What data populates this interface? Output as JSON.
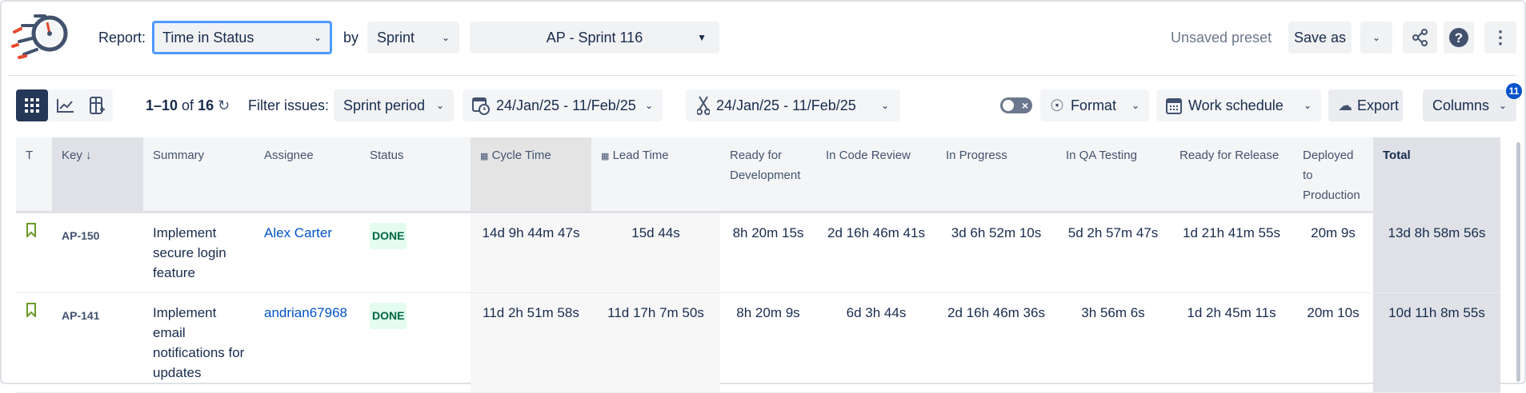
{
  "header": {
    "report_label": "Report:",
    "report_value": "Time in Status",
    "by_label": "by",
    "by_value": "Sprint",
    "sprint_value": "AP - Sprint 116",
    "preset_status": "Unsaved preset",
    "save_as": "Save as"
  },
  "toolbar": {
    "range_bold": "1–10",
    "range_of": "of",
    "range_total": "16",
    "filter_label": "Filter issues:",
    "filter_value": "Sprint period",
    "date_range_1": "24/Jan/25 - 11/Feb/25",
    "date_range_2": "24/Jan/25 - 11/Feb/25",
    "format": "Format",
    "work_schedule": "Work schedule",
    "export": "Export",
    "columns": "Columns",
    "columns_badge": "11"
  },
  "colors": {
    "accent": "#4c9aff",
    "dark": "#253858",
    "done_bg": "#e3fcef",
    "done_text": "#006644",
    "link": "#0052cc"
  },
  "table": {
    "headers": [
      "T",
      "Key",
      "Summary",
      "Assignee",
      "Status",
      "Cycle Time",
      "Lead Time",
      "Ready for Development",
      "In Code Review",
      "In Progress",
      "In QA Testing",
      "Ready for Release",
      "Deployed to Production",
      "Total"
    ],
    "rows": [
      {
        "type": "story",
        "key": "AP-150",
        "summary": "Implement secure login feature",
        "assignee": "Alex Carter",
        "status": "DONE",
        "values": [
          "14d 9h 44m 47s",
          "15d 44s",
          "8h 20m 15s",
          "2d 16h 46m 41s",
          "3d 6h 52m 10s",
          "5d 2h 57m 47s",
          "1d 21h 41m 55s",
          "20m 9s",
          "13d 8h 58m 56s"
        ]
      },
      {
        "type": "story",
        "key": "AP-141",
        "summary": "Implement email notifications for updates",
        "assignee": "andrian67968",
        "status": "DONE",
        "values": [
          "11d 2h 51m 58s",
          "11d 17h 7m 50s",
          "8h 20m 9s",
          "6d 3h 44s",
          "2d 16h 46m 36s",
          "3h 56m 6s",
          "1d 2h 45m 11s",
          "20m 10s",
          "10d 11h 8m 55s"
        ]
      }
    ]
  }
}
